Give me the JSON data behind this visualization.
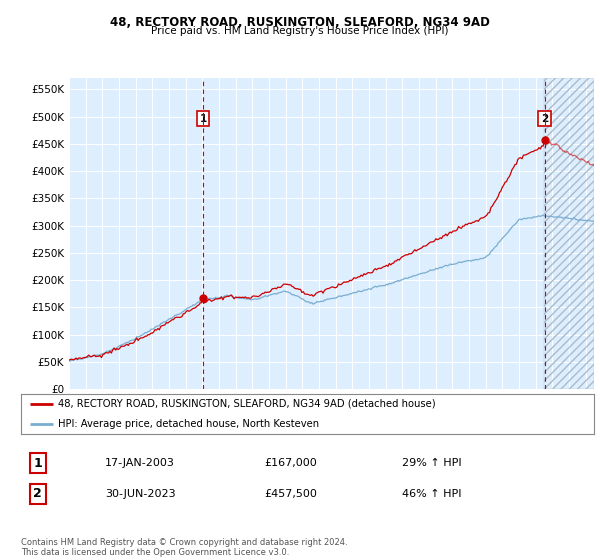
{
  "title_line1": "48, RECTORY ROAD, RUSKINGTON, SLEAFORD, NG34 9AD",
  "title_line2": "Price paid vs. HM Land Registry's House Price Index (HPI)",
  "yticks": [
    0,
    50000,
    100000,
    150000,
    200000,
    250000,
    300000,
    350000,
    400000,
    450000,
    500000,
    550000
  ],
  "ytick_labels": [
    "£0",
    "£50K",
    "£100K",
    "£150K",
    "£200K",
    "£250K",
    "£300K",
    "£350K",
    "£400K",
    "£450K",
    "£500K",
    "£550K"
  ],
  "xlim_start": 1995.0,
  "xlim_end": 2026.5,
  "ylim_min": 0,
  "ylim_max": 570000,
  "point1_x": 2003.04,
  "point1_y": 167000,
  "point2_x": 2023.5,
  "point2_y": 457500,
  "legend_line1": "48, RECTORY ROAD, RUSKINGTON, SLEAFORD, NG34 9AD (detached house)",
  "legend_line2": "HPI: Average price, detached house, North Kesteven",
  "table_row1_num": "1",
  "table_row1_date": "17-JAN-2003",
  "table_row1_price": "£167,000",
  "table_row1_hpi": "29% ↑ HPI",
  "table_row2_num": "2",
  "table_row2_date": "30-JUN-2023",
  "table_row2_price": "£457,500",
  "table_row2_hpi": "46% ↑ HPI",
  "footer": "Contains HM Land Registry data © Crown copyright and database right 2024.\nThis data is licensed under the Open Government Licence v3.0.",
  "red_color": "#cc0000",
  "blue_color": "#7aadcf",
  "plot_bg": "#ddeeff",
  "hatch_color": "#aabbcc"
}
